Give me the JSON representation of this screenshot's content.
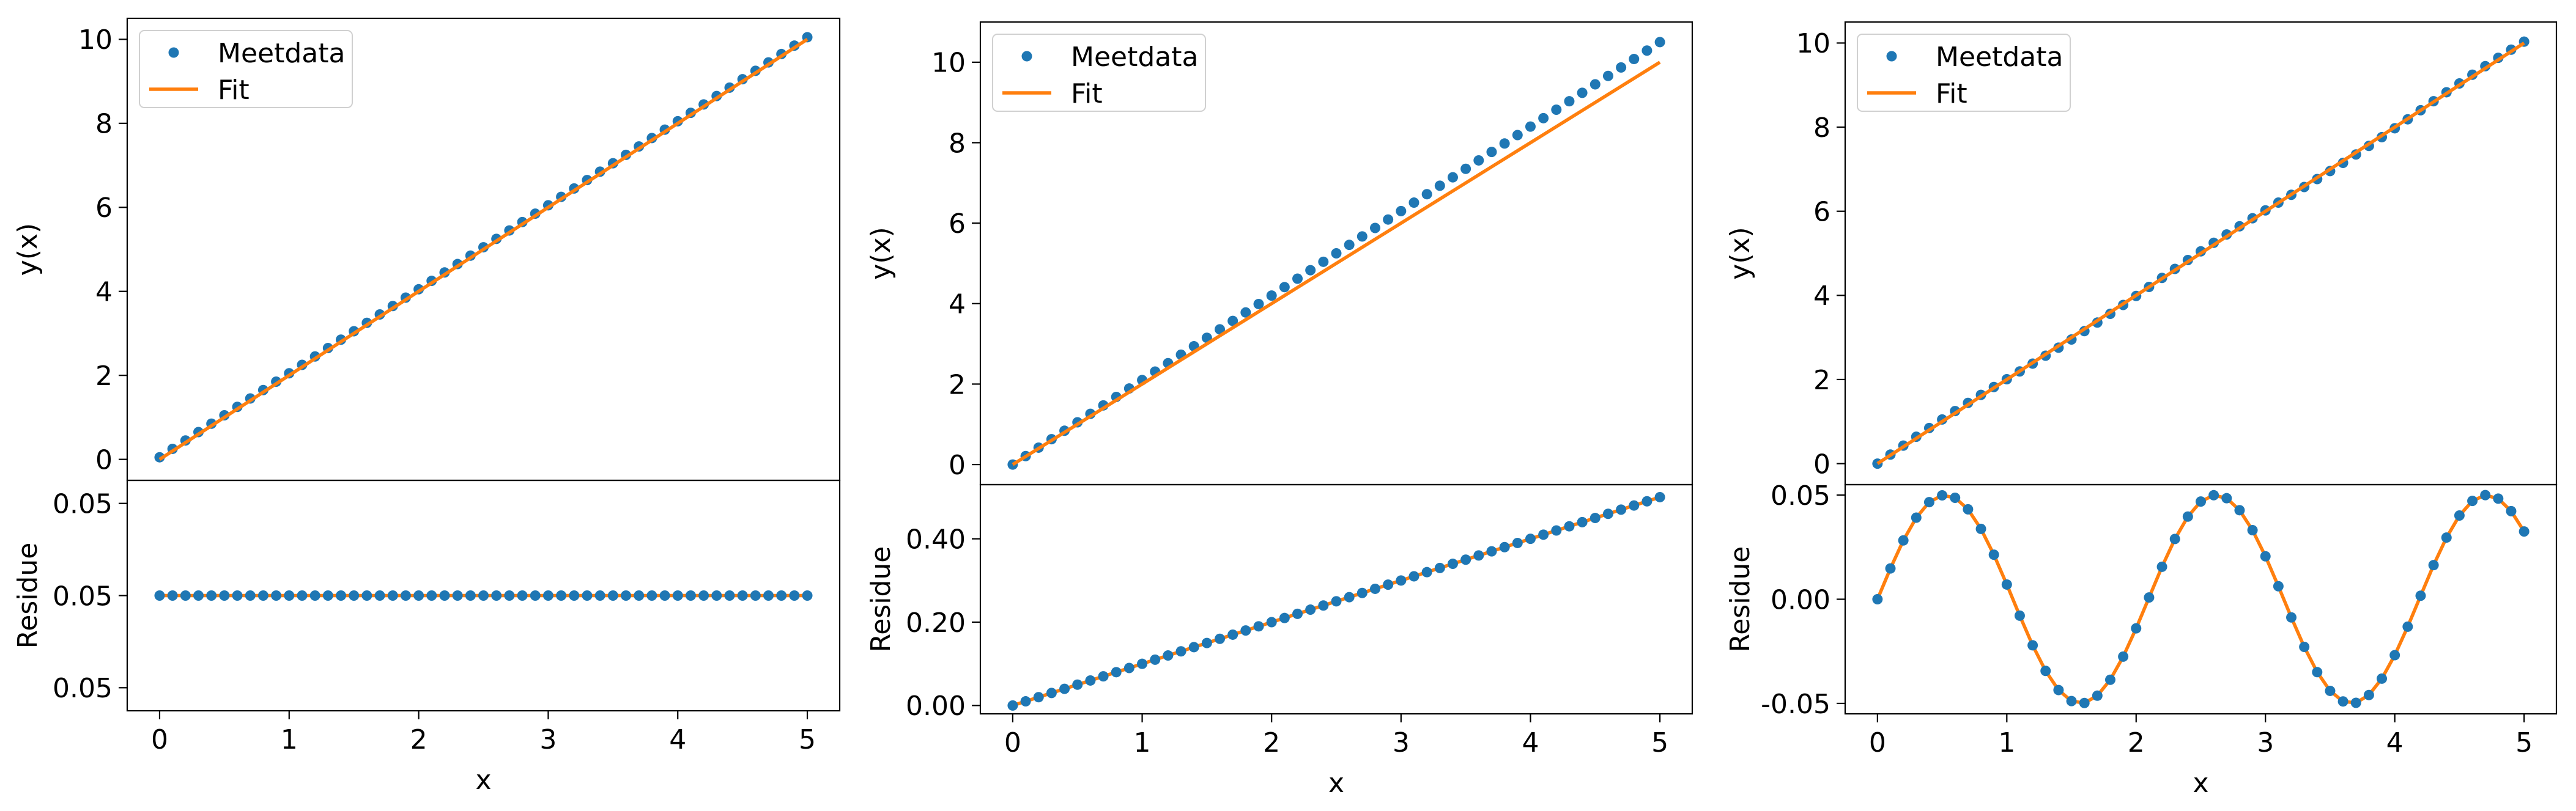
{
  "colors": {
    "data": "#1f77b4",
    "fit": "#ff7f0e",
    "axes": "#000000",
    "background": "#ffffff"
  },
  "chart_data": [
    {
      "type": "scatter",
      "panel": "left",
      "x": {
        "start": 0,
        "stop": 5,
        "count": 51
      },
      "top": {
        "ylabel": "y(x)",
        "xlim": [
          -0.25,
          5.25
        ],
        "ylim": [
          -0.5,
          10.5
        ],
        "yticks": [
          0,
          2,
          4,
          6,
          8,
          10
        ],
        "ytick_labels": [
          "0",
          "2",
          "4",
          "6",
          "8",
          "10"
        ],
        "legend": {
          "position": "upper-left",
          "entries": [
            "Meetdata",
            "Fit"
          ]
        },
        "series": [
          {
            "name": "Meetdata",
            "kind": "markers",
            "formula": "2x + 0.05"
          },
          {
            "name": "Fit",
            "kind": "line",
            "formula": "2x"
          }
        ]
      },
      "bottom": {
        "ylabel": "Residue",
        "xlabel": "x",
        "xticks": [
          0,
          1,
          2,
          3,
          4,
          5
        ],
        "xtick_labels": [
          "0",
          "1",
          "2",
          "3",
          "4",
          "5"
        ],
        "ylim": [
          0.0495,
          0.0505
        ],
        "yticks": [
          0.0496,
          0.05,
          0.0504
        ],
        "ytick_labels": [
          "0.05",
          "0.05",
          "0.05"
        ],
        "series": [
          {
            "name": "Residue",
            "kind": "markers+line",
            "formula": "0.05"
          }
        ]
      }
    },
    {
      "type": "scatter",
      "panel": "middle",
      "x": {
        "start": 0,
        "stop": 5,
        "count": 51
      },
      "top": {
        "ylabel": "y(x)",
        "xlim": [
          -0.25,
          5.25
        ],
        "ylim": [
          -0.5,
          11.0
        ],
        "yticks": [
          0,
          2,
          4,
          6,
          8,
          10
        ],
        "ytick_labels": [
          "0",
          "2",
          "4",
          "6",
          "8",
          "10"
        ],
        "legend": {
          "position": "upper-left",
          "entries": [
            "Meetdata",
            "Fit"
          ]
        },
        "series": [
          {
            "name": "Meetdata",
            "kind": "markers",
            "formula": "2.1x"
          },
          {
            "name": "Fit",
            "kind": "line",
            "formula": "2x"
          }
        ]
      },
      "bottom": {
        "ylabel": "Residue",
        "xlabel": "x",
        "xticks": [
          0,
          1,
          2,
          3,
          4,
          5
        ],
        "xtick_labels": [
          "0",
          "1",
          "2",
          "3",
          "4",
          "5"
        ],
        "ylim": [
          -0.02,
          0.53
        ],
        "yticks": [
          0.0,
          0.2,
          0.4
        ],
        "ytick_labels": [
          "0.00",
          "0.20",
          "0.40"
        ],
        "series": [
          {
            "name": "Residue",
            "kind": "markers+line",
            "formula": "0.1x"
          }
        ]
      }
    },
    {
      "type": "scatter",
      "panel": "right",
      "x": {
        "start": 0,
        "stop": 5,
        "count": 51
      },
      "top": {
        "ylabel": "y(x)",
        "xlim": [
          -0.25,
          5.25
        ],
        "ylim": [
          -0.5,
          10.5
        ],
        "yticks": [
          0,
          2,
          4,
          6,
          8,
          10
        ],
        "ytick_labels": [
          "0",
          "2",
          "4",
          "6",
          "8",
          "10"
        ],
        "legend": {
          "position": "upper-left",
          "entries": [
            "Meetdata",
            "Fit"
          ]
        },
        "series": [
          {
            "name": "Meetdata",
            "kind": "markers",
            "formula": "2x + 0.05 sin(3x)"
          },
          {
            "name": "Fit",
            "kind": "line",
            "formula": "2x"
          }
        ]
      },
      "bottom": {
        "ylabel": "Residue",
        "xlabel": "x",
        "xticks": [
          0,
          1,
          2,
          3,
          4,
          5
        ],
        "xtick_labels": [
          "0",
          "1",
          "2",
          "3",
          "4",
          "5"
        ],
        "ylim": [
          -0.055,
          0.055
        ],
        "yticks": [
          -0.05,
          0.0,
          0.05
        ],
        "ytick_labels": [
          "-0.05",
          "0.00",
          "0.05"
        ],
        "series": [
          {
            "name": "Residue",
            "kind": "markers+line",
            "formula": "0.05 sin(3x)"
          }
        ]
      }
    }
  ]
}
